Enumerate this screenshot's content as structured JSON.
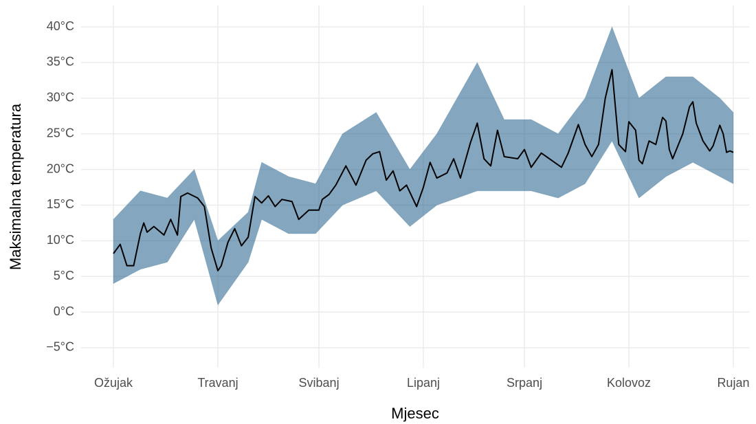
{
  "chart_data": {
    "type": "line",
    "x_label": "Mjesec",
    "y_label": "Maksimalna temperatura",
    "xlim": [
      -9.6,
      188.7
    ],
    "ylim": [
      -7.8,
      43
    ],
    "xticks": [
      {
        "value": 0,
        "label": "Ožujak"
      },
      {
        "value": 31,
        "label": "Travanj"
      },
      {
        "value": 61,
        "label": "Svibanj"
      },
      {
        "value": 92,
        "label": "Lipanj"
      },
      {
        "value": 122,
        "label": "Srpanj"
      },
      {
        "value": 153,
        "label": "Kolovoz"
      },
      {
        "value": 184,
        "label": "Rujan"
      }
    ],
    "yticks": [
      {
        "value": -5,
        "label": "−5°C"
      },
      {
        "value": 0,
        "label": "0°C"
      },
      {
        "value": 5,
        "label": "5°C"
      },
      {
        "value": 10,
        "label": "10°C"
      },
      {
        "value": 15,
        "label": "15°C"
      },
      {
        "value": 20,
        "label": "20°C"
      },
      {
        "value": 25,
        "label": "25°C"
      },
      {
        "value": 30,
        "label": "30°C"
      },
      {
        "value": 35,
        "label": "35°C"
      },
      {
        "value": 40,
        "label": "40°C"
      }
    ],
    "grid": true,
    "band": {
      "color": "#1f5f8b",
      "x": [
        0,
        8,
        16,
        24,
        31,
        40,
        44,
        52,
        60,
        68,
        78,
        88,
        96,
        108,
        116,
        124,
        132,
        140,
        148,
        156,
        164,
        172,
        180,
        184
      ],
      "lower": [
        4,
        6,
        7,
        13,
        1,
        7,
        13,
        11,
        11,
        15,
        17,
        12,
        15,
        17,
        17,
        17,
        16,
        18,
        24,
        16,
        19,
        21,
        19,
        18
      ],
      "upper": [
        13,
        17,
        16,
        20,
        10,
        14,
        21,
        19,
        18,
        25,
        28,
        20,
        25,
        35,
        27,
        27,
        25,
        30,
        40,
        30,
        33,
        33,
        30,
        28
      ]
    },
    "x": [
      0,
      2,
      4,
      6,
      8,
      9,
      10,
      12,
      15,
      17,
      19,
      20,
      22,
      25,
      27,
      29,
      31,
      32,
      34,
      36,
      38,
      40,
      42,
      44,
      46,
      48,
      50,
      53,
      55,
      58,
      61,
      62,
      64,
      66,
      69,
      72,
      75,
      77,
      79,
      81,
      83,
      85,
      87,
      90,
      92,
      94,
      96,
      99,
      101,
      103,
      106,
      108,
      110,
      112,
      114,
      116,
      120,
      122,
      124,
      127,
      130,
      133,
      135,
      138,
      140,
      142,
      144,
      146,
      148,
      150,
      152,
      153,
      155,
      156,
      157,
      159,
      161,
      163,
      164,
      165,
      166,
      169,
      171,
      172,
      173,
      175,
      177,
      178,
      180,
      181,
      182,
      183,
      184
    ],
    "series": [
      {
        "color": "#000000",
        "values": [
          8.2,
          9.5,
          6.5,
          6.5,
          11,
          12.5,
          11.2,
          12,
          10.8,
          13,
          10.8,
          16.2,
          16.7,
          16,
          14.8,
          9,
          5.8,
          6.5,
          9.8,
          11.7,
          9.3,
          10.5,
          16.2,
          15.3,
          16.3,
          14.8,
          15.8,
          15.5,
          13,
          14.3,
          14.3,
          15.8,
          16.5,
          17.8,
          20.5,
          17.8,
          21.3,
          22.2,
          22.5,
          18.5,
          19.8,
          17,
          17.8,
          14.8,
          17.5,
          21,
          18.8,
          19.5,
          21.5,
          18.8,
          23.8,
          26.5,
          21.5,
          20.5,
          25.5,
          21.8,
          21.5,
          22.8,
          20.3,
          22.3,
          21.3,
          20.3,
          22.3,
          26.3,
          23.5,
          21.8,
          23.5,
          30,
          34,
          23.5,
          22.5,
          26.7,
          25.5,
          21.3,
          20.8,
          24,
          23.5,
          27.3,
          26.8,
          22.8,
          21.5,
          25,
          28.8,
          29.5,
          26.5,
          24,
          22.6,
          23.3,
          26.2,
          25,
          22.4,
          22.6,
          22.4
        ]
      }
    ]
  }
}
